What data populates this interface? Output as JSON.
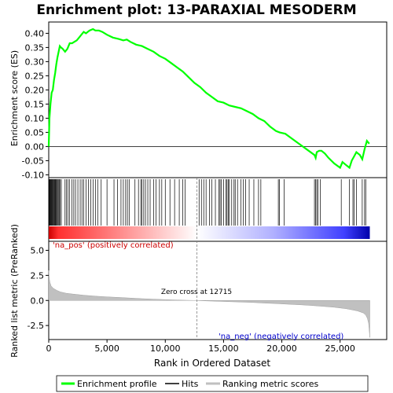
{
  "chart_data": {
    "type": "line",
    "title": "Enrichment plot: 13-PARAXIAL MESODERM",
    "panels": {
      "enrichment": {
        "ylabel": "Enrichment score (ES)",
        "ylim": [
          -0.11,
          0.44
        ],
        "yticks": [
          -0.1,
          -0.05,
          0.0,
          0.05,
          0.1,
          0.15,
          0.2,
          0.25,
          0.3,
          0.35,
          0.4
        ],
        "series": [
          {
            "name": "Enrichment profile",
            "color": "#00ff00",
            "x": [
              0,
              60,
              150,
              250,
              350,
              450,
              550,
              650,
              750,
              850,
              950,
              1050,
              1200,
              1400,
              1600,
              1800,
              2000,
              2200,
              2400,
              2600,
              2800,
              3000,
              3200,
              3500,
              3800,
              4000,
              4300,
              4600,
              5000,
              5500,
              6000,
              6400,
              6700,
              7000,
              7500,
              8000,
              8500,
              9000,
              9500,
              10000,
              10500,
              11000,
              11500,
              12000,
              12500,
              13000,
              13500,
              14000,
              14500,
              15000,
              15500,
              16000,
              16500,
              17000,
              17500,
              18000,
              18500,
              19000,
              19500,
              19800,
              20300,
              20800,
              21300,
              21800,
              22300,
              22800,
              22900,
              23000,
              23200,
              23400,
              23700,
              24000,
              24500,
              25000,
              25200,
              25500,
              25800,
              26000,
              26200,
              26400,
              26700,
              26900,
              27100,
              27300,
              27500
            ],
            "y": [
              0.0,
              0.1,
              0.15,
              0.19,
              0.2,
              0.235,
              0.26,
              0.29,
              0.315,
              0.335,
              0.355,
              0.35,
              0.345,
              0.335,
              0.345,
              0.365,
              0.365,
              0.37,
              0.375,
              0.385,
              0.395,
              0.405,
              0.4,
              0.41,
              0.415,
              0.41,
              0.41,
              0.405,
              0.395,
              0.385,
              0.38,
              0.375,
              0.378,
              0.37,
              0.36,
              0.355,
              0.345,
              0.335,
              0.32,
              0.31,
              0.295,
              0.28,
              0.265,
              0.245,
              0.225,
              0.21,
              0.19,
              0.175,
              0.16,
              0.155,
              0.145,
              0.14,
              0.135,
              0.125,
              0.115,
              0.1,
              0.09,
              0.07,
              0.055,
              0.05,
              0.045,
              0.03,
              0.015,
              0.0,
              -0.015,
              -0.03,
              -0.04,
              -0.02,
              -0.015,
              -0.015,
              -0.025,
              -0.04,
              -0.06,
              -0.075,
              -0.055,
              -0.065,
              -0.075,
              -0.05,
              -0.035,
              -0.02,
              -0.03,
              -0.045,
              -0.01,
              0.02,
              0.01
            ]
          }
        ],
        "hline": 0
      },
      "hits": {
        "label": "Hits",
        "positions": [
          40,
          90,
          130,
          180,
          230,
          270,
          320,
          380,
          430,
          480,
          540,
          590,
          650,
          700,
          760,
          830,
          900,
          980,
          1080,
          1400,
          1520,
          1650,
          1800,
          2000,
          2150,
          2300,
          2500,
          2700,
          2850,
          3000,
          3200,
          3400,
          3600,
          3800,
          4000,
          4200,
          4500,
          5000,
          5600,
          5900,
          6200,
          6400,
          6600,
          6750,
          6900,
          7400,
          7700,
          7900,
          8000,
          8150,
          8300,
          8500,
          8700,
          9000,
          9200,
          9500,
          9700,
          10000,
          10400,
          10800,
          11200,
          11500,
          11700,
          12900,
          13100,
          13300,
          13500,
          13800,
          14000,
          14300,
          14600,
          14700,
          14800,
          15000,
          15200,
          15300,
          15400,
          15500,
          15700,
          15900,
          16000,
          16200,
          16500,
          16700,
          16900,
          17200,
          17600,
          18000,
          18200,
          19700,
          19800,
          20200,
          22800,
          22900,
          23000,
          23100,
          23300,
          25100,
          25800,
          26100,
          26200,
          26400,
          26900,
          27100,
          27200
        ]
      },
      "ranked_metric": {
        "ylabel": "Ranked list metric (PreRanked)",
        "xlabel": "Rank in Ordered Dataset",
        "ylim": [
          -3.9,
          5.9
        ],
        "yticks": [
          -2.5,
          0.0,
          2.5,
          5.0
        ],
        "x": [
          0,
          50,
          100,
          200,
          400,
          700,
          1000,
          1500,
          2000,
          3000,
          4000,
          5000,
          6000,
          7000,
          8000,
          9000,
          10000,
          11000,
          12000,
          12715,
          13500,
          14500,
          15500,
          16500,
          17500,
          18500,
          19500,
          20500,
          21500,
          22500,
          23500,
          24500,
          25500,
          26000,
          26500,
          27000,
          27200,
          27350,
          27450,
          27500,
          27550
        ],
        "y": [
          3.0,
          2.2,
          1.8,
          1.45,
          1.2,
          1.0,
          0.85,
          0.72,
          0.65,
          0.52,
          0.43,
          0.36,
          0.3,
          0.24,
          0.18,
          0.13,
          0.08,
          0.04,
          0.01,
          0.0,
          -0.04,
          -0.08,
          -0.12,
          -0.16,
          -0.2,
          -0.26,
          -0.31,
          -0.37,
          -0.43,
          -0.5,
          -0.58,
          -0.68,
          -0.82,
          -0.93,
          -1.05,
          -1.25,
          -1.45,
          -1.8,
          -2.3,
          -3.0,
          -3.7
        ],
        "annotations": {
          "pos_label": "'na_pos' (positively correlated)",
          "neg_label": "'na_neg' (negatively correlated)",
          "zero_cross": "Zero cross at 12715",
          "zero_cross_rank": 12715
        }
      }
    },
    "xlim": [
      0,
      29000
    ],
    "xticks": [
      0,
      5000,
      10000,
      15000,
      20000,
      25000
    ],
    "legend": {
      "placement": "bottom",
      "entries": [
        {
          "label": "Enrichment profile",
          "color": "#00ff00"
        },
        {
          "label": "Hits",
          "color": "#000000"
        },
        {
          "label": "Ranking metric scores",
          "color": "#c0c0c0"
        }
      ]
    }
  },
  "colors": {
    "es_line": "#00ff00",
    "hits": "#000000",
    "metric_fill": "#c0c0c0",
    "pos_text": "#cc0000",
    "neg_text": "#0000cc",
    "zero_line": "#808080"
  }
}
